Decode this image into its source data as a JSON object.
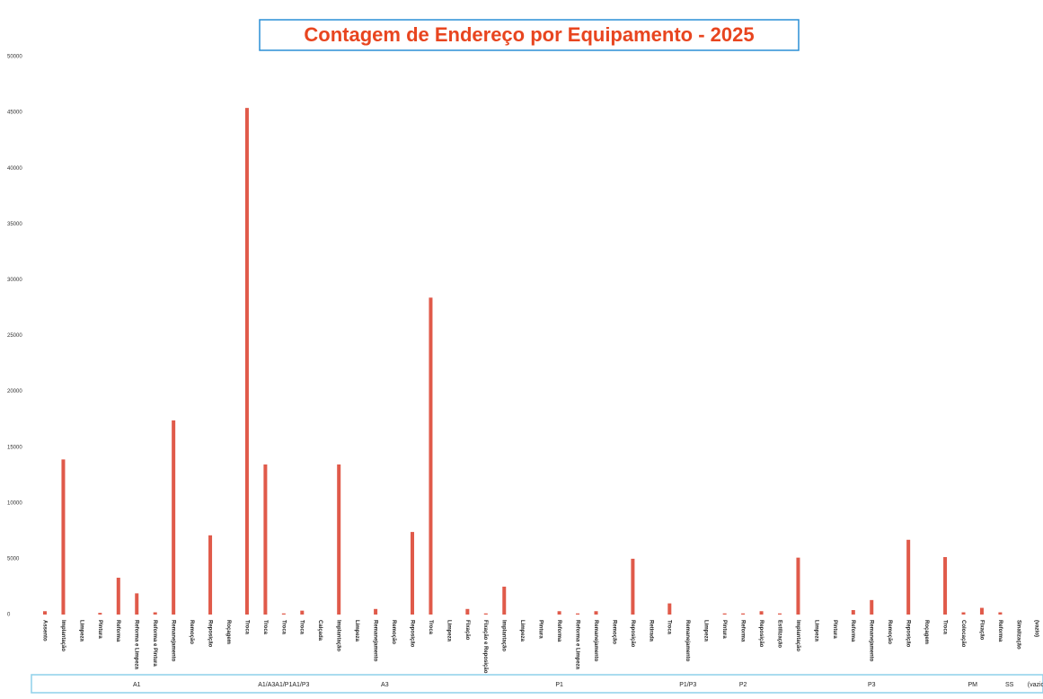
{
  "chart_data": {
    "type": "bar",
    "title": "Contagem de Endereço por Equipamento - 2025",
    "color": "#e05a4a",
    "ylim": [
      0,
      50000
    ],
    "yticks": [
      0,
      5000,
      10000,
      15000,
      20000,
      25000,
      30000,
      35000,
      40000,
      45000,
      50000
    ],
    "grid": false,
    "groups": [
      {
        "label": "A1",
        "categories": [
          "Assento",
          "Implantação",
          "Limpeza",
          "Pintura",
          "Reforma",
          "Reforma e Limpeza",
          "Reforma e Pintura",
          "Remanejamento",
          "Remoção",
          "Reposição",
          "Roçagem"
        ],
        "values": [
          300,
          13900,
          0,
          150,
          3300,
          1900,
          200,
          17400,
          0,
          7100,
          0
        ]
      },
      {
        "label": "A1/A3A1/P1A1/P3",
        "categories": [
          "Troca",
          "Troca",
          "Troca",
          "Troca",
          "Calçada"
        ],
        "values": [
          45400,
          13450,
          100,
          350,
          0
        ]
      },
      {
        "label": "A3",
        "categories": [
          "Implantação",
          "Limpeza",
          "Remanejamento",
          "Remoção",
          "Reposição",
          "Troca"
        ],
        "values": [
          13450,
          0,
          500,
          0,
          7400,
          28400
        ]
      },
      {
        "label": "P1",
        "categories": [
          "Limpeza",
          "Fixação",
          "Fixação e Reposição",
          "Implantação",
          "Limpeza",
          "Pintura",
          "Reforma",
          "Reforma e Limpeza",
          "Remanejamento",
          "Remoção",
          "Reposição",
          "Retirada",
          "Troca"
        ],
        "values": [
          0,
          500,
          100,
          2500,
          0,
          0,
          300,
          100,
          300,
          0,
          5000,
          0,
          1000
        ]
      },
      {
        "label": "P1/P3",
        "categories": [
          "Remanejamento"
        ],
        "values": [
          0
        ]
      },
      {
        "label": "P2",
        "categories": [
          "Limpeza",
          "Pintura",
          "Reforma",
          "Reposição",
          "Estilização"
        ],
        "values": [
          0,
          100,
          100,
          300,
          100
        ]
      },
      {
        "label": "P3",
        "categories": [
          "Implantação",
          "Limpeza",
          "Pintura",
          "Reforma",
          "Remanejamento",
          "Remoção",
          "Reposição",
          "Roçagem",
          "Troca"
        ],
        "values": [
          5100,
          0,
          0,
          400,
          1300,
          0,
          6700,
          0,
          5150
        ]
      },
      {
        "label": "PM",
        "categories": [
          "Colocação",
          "Fixação"
        ],
        "values": [
          200,
          600
        ]
      },
      {
        "label": "SS",
        "categories": [
          "Reforma",
          "Sinalização"
        ],
        "values": [
          200,
          0
        ]
      },
      {
        "label": "(vazio)",
        "categories": [
          "(vazio)"
        ],
        "values": [
          0
        ]
      }
    ]
  }
}
